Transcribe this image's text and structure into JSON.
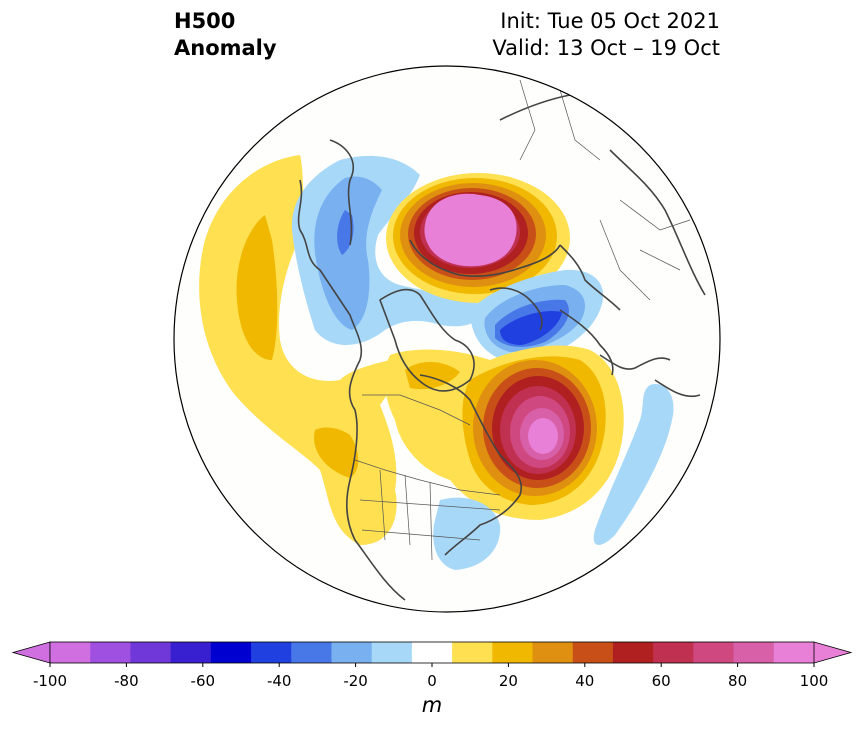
{
  "header": {
    "title_line1": "H500",
    "title_line2": "Anomaly",
    "init": "Init: Tue 05 Oct 2021",
    "valid": "Valid: 13 Oct – 19 Oct"
  },
  "colorbar": {
    "unit": "m",
    "ticks": [
      "-100",
      "-80",
      "-60",
      "-40",
      "-20",
      "0",
      "20",
      "40",
      "60",
      "80",
      "100"
    ],
    "colors": [
      "#d070e0",
      "#a050e0",
      "#7038d8",
      "#3820d0",
      "#0000d0",
      "#2040e0",
      "#4878e8",
      "#78b0f0",
      "#a8d8f8",
      "#ffffff",
      "#ffe050",
      "#f0b800",
      "#e09010",
      "#c85018",
      "#b02020",
      "#c03050",
      "#d04880",
      "#d860a8",
      "#e880d8"
    ],
    "end_low": "#d070e0",
    "end_high": "#e880d8"
  },
  "map": {
    "projection": "north-polar-stereographic",
    "features": [
      "H500 anomaly contours",
      "coastlines",
      "country borders",
      "US state borders"
    ],
    "anomaly_centers": [
      {
        "sign": "positive",
        "region": "Arctic north of Siberia",
        "max_m": 100
      },
      {
        "sign": "positive",
        "region": "Labrador / Hudson Bay",
        "max_m": 100
      },
      {
        "sign": "negative",
        "region": "Greenland / Arctic Canada",
        "min_m": -60
      },
      {
        "sign": "negative",
        "region": "Scandinavia / North Atlantic",
        "min_m": -40
      },
      {
        "sign": "negative",
        "region": "eastern United States",
        "min_m": -20
      },
      {
        "sign": "positive",
        "region": "North Pacific / western Canada",
        "max_m": 40
      }
    ]
  }
}
